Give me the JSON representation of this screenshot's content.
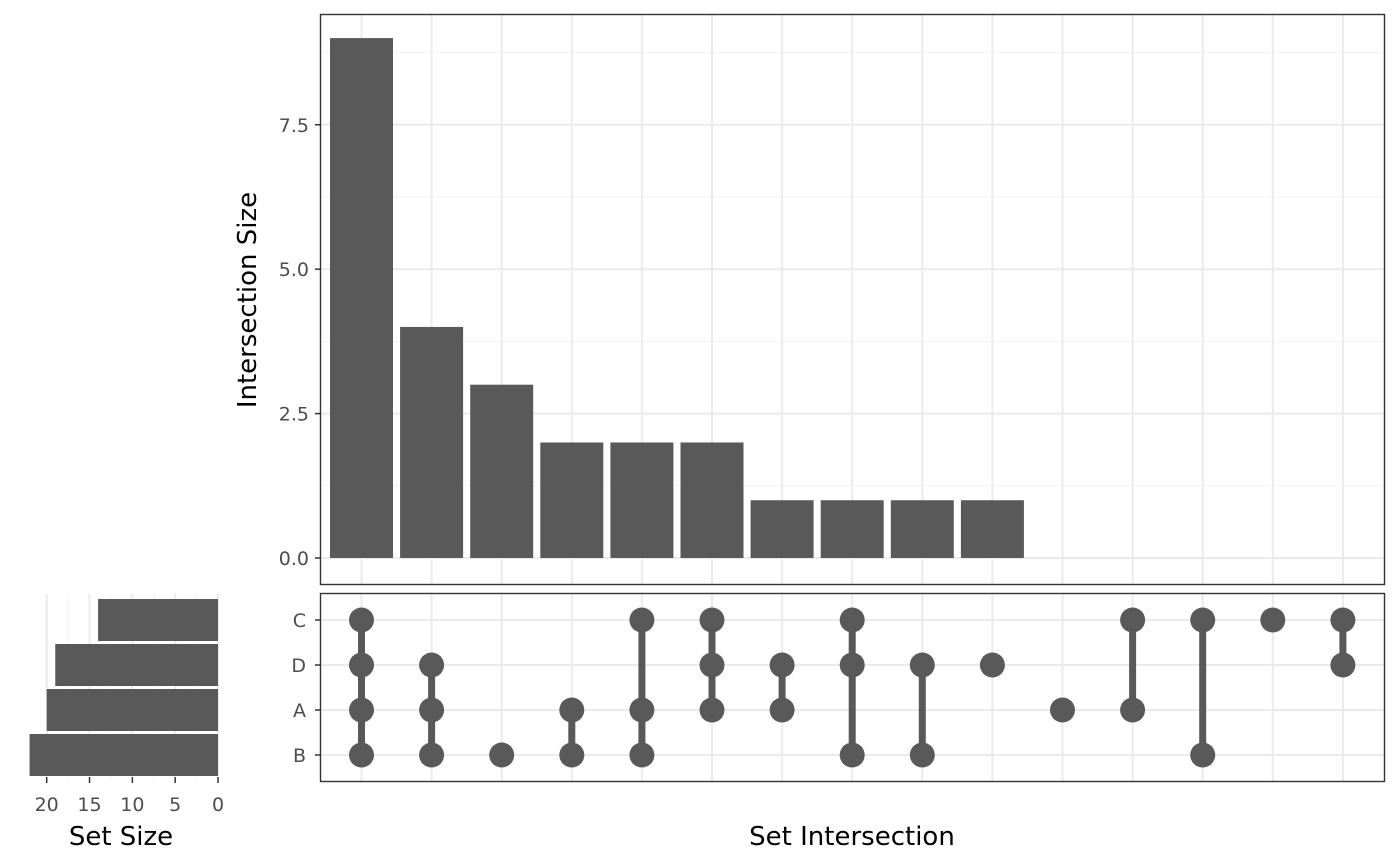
{
  "chart_data": {
    "type": "bar",
    "subtype": "upset",
    "colors": {
      "bar": "#595959",
      "dot": "#595959",
      "grid": "#ebebeb",
      "border": "#333333"
    },
    "intersection_size": {
      "ylabel": "Intersection Size",
      "ylim": [
        -0.45,
        9.4
      ],
      "y_ticks": [
        0.0,
        2.5,
        5.0,
        7.5
      ],
      "y_tick_labels": [
        "0.0",
        "2.5",
        "5.0",
        "7.5"
      ],
      "values": [
        9,
        4,
        3,
        2,
        2,
        2,
        1,
        1,
        1,
        1,
        0,
        0,
        0,
        0,
        0
      ]
    },
    "matrix": {
      "xlabel": "Set Intersection",
      "sets": [
        "C",
        "D",
        "A",
        "B"
      ],
      "columns": [
        [
          "C",
          "D",
          "A",
          "B"
        ],
        [
          "D",
          "A",
          "B"
        ],
        [
          "B"
        ],
        [
          "A",
          "B"
        ],
        [
          "C",
          "A",
          "B"
        ],
        [
          "C",
          "D",
          "A"
        ],
        [
          "D",
          "A"
        ],
        [
          "C",
          "D",
          "B"
        ],
        [
          "D",
          "B"
        ],
        [
          "D"
        ],
        [
          "A"
        ],
        [
          "C",
          "A"
        ],
        [
          "C",
          "B"
        ],
        [
          "C"
        ],
        [
          "C",
          "D"
        ]
      ]
    },
    "set_size": {
      "xlabel": "Set Size",
      "x_ticks": [
        20,
        15,
        10,
        5,
        0
      ],
      "x_tick_labels": [
        "20",
        "15",
        "10",
        "5",
        "0"
      ],
      "xlim": [
        23,
        0
      ],
      "sets": [
        "C",
        "D",
        "A",
        "B"
      ],
      "values": [
        14,
        19,
        20,
        22
      ]
    }
  }
}
